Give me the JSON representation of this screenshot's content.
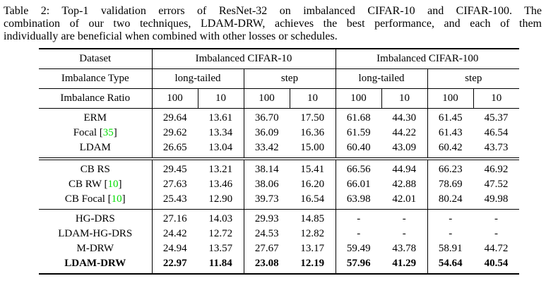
{
  "caption": {
    "lines": [
      "Table 2: Top-1 validation errors of ResNet-32 on imbalanced CIFAR-10 and CIFAR-100. The",
      "combination of our two techniques, LDAM-DRW, achieves the best performance, and each of them",
      "individually are beneficial when combined with other losses or schedules."
    ]
  },
  "table": {
    "cite_color": "#00DC00",
    "header": {
      "dataset_label": "Dataset",
      "datasets": [
        "Imbalanced CIFAR-10",
        "Imbalanced CIFAR-100"
      ],
      "imbalance_type_label": "Imbalance Type",
      "imbalance_types": [
        "long-tailed",
        "step",
        "long-tailed",
        "step"
      ],
      "imbalance_ratio_label": "Imbalance Ratio",
      "imbalance_ratios": [
        "100",
        "10",
        "100",
        "10",
        "100",
        "10",
        "100",
        "10"
      ]
    },
    "groups": [
      {
        "rows": [
          {
            "method": "ERM",
            "cite": null,
            "bold": false,
            "values": [
              "29.64",
              "13.61",
              "36.70",
              "17.50",
              "61.68",
              "44.30",
              "61.45",
              "45.37"
            ]
          },
          {
            "method": "Focal",
            "cite": "35",
            "bold": false,
            "values": [
              "29.62",
              "13.34",
              "36.09",
              "16.36",
              "61.59",
              "44.22",
              "61.43",
              "46.54"
            ]
          },
          {
            "method": "LDAM",
            "cite": null,
            "bold": false,
            "values": [
              "26.65",
              "13.04",
              "33.42",
              "15.00",
              "60.40",
              "43.09",
              "60.42",
              "43.73"
            ]
          }
        ]
      },
      {
        "rows": [
          {
            "method": "CB RS",
            "cite": null,
            "bold": false,
            "values": [
              "29.45",
              "13.21",
              "38.14",
              "15.41",
              "66.56",
              "44.94",
              "66.23",
              "46.92"
            ]
          },
          {
            "method": "CB RW",
            "cite": "10",
            "bold": false,
            "values": [
              "27.63",
              "13.46",
              "38.06",
              "16.20",
              "66.01",
              "42.88",
              "78.69",
              "47.52"
            ]
          },
          {
            "method": "CB Focal",
            "cite": "10",
            "bold": false,
            "values": [
              "25.43",
              "12.90",
              "39.73",
              "16.54",
              "63.98",
              "42.01",
              "80.24",
              "49.98"
            ]
          }
        ]
      },
      {
        "rows": [
          {
            "method": "HG-DRS",
            "cite": null,
            "bold": false,
            "values": [
              "27.16",
              "14.03",
              "29.93",
              "14.85",
              "-",
              "-",
              "-",
              "-"
            ]
          },
          {
            "method": "LDAM-HG-DRS",
            "cite": null,
            "bold": false,
            "values": [
              "24.42",
              "12.72",
              "24.53",
              "12.82",
              "-",
              "-",
              "-",
              "-"
            ]
          },
          {
            "method": "M-DRW",
            "cite": null,
            "bold": false,
            "values": [
              "24.94",
              "13.57",
              "27.67",
              "13.17",
              "59.49",
              "43.78",
              "58.91",
              "44.72"
            ]
          },
          {
            "method": "LDAM-DRW",
            "cite": null,
            "bold": true,
            "values": [
              "22.97",
              "11.84",
              "23.08",
              "12.19",
              "57.96",
              "41.29",
              "54.64",
              "40.54"
            ]
          }
        ]
      }
    ]
  }
}
